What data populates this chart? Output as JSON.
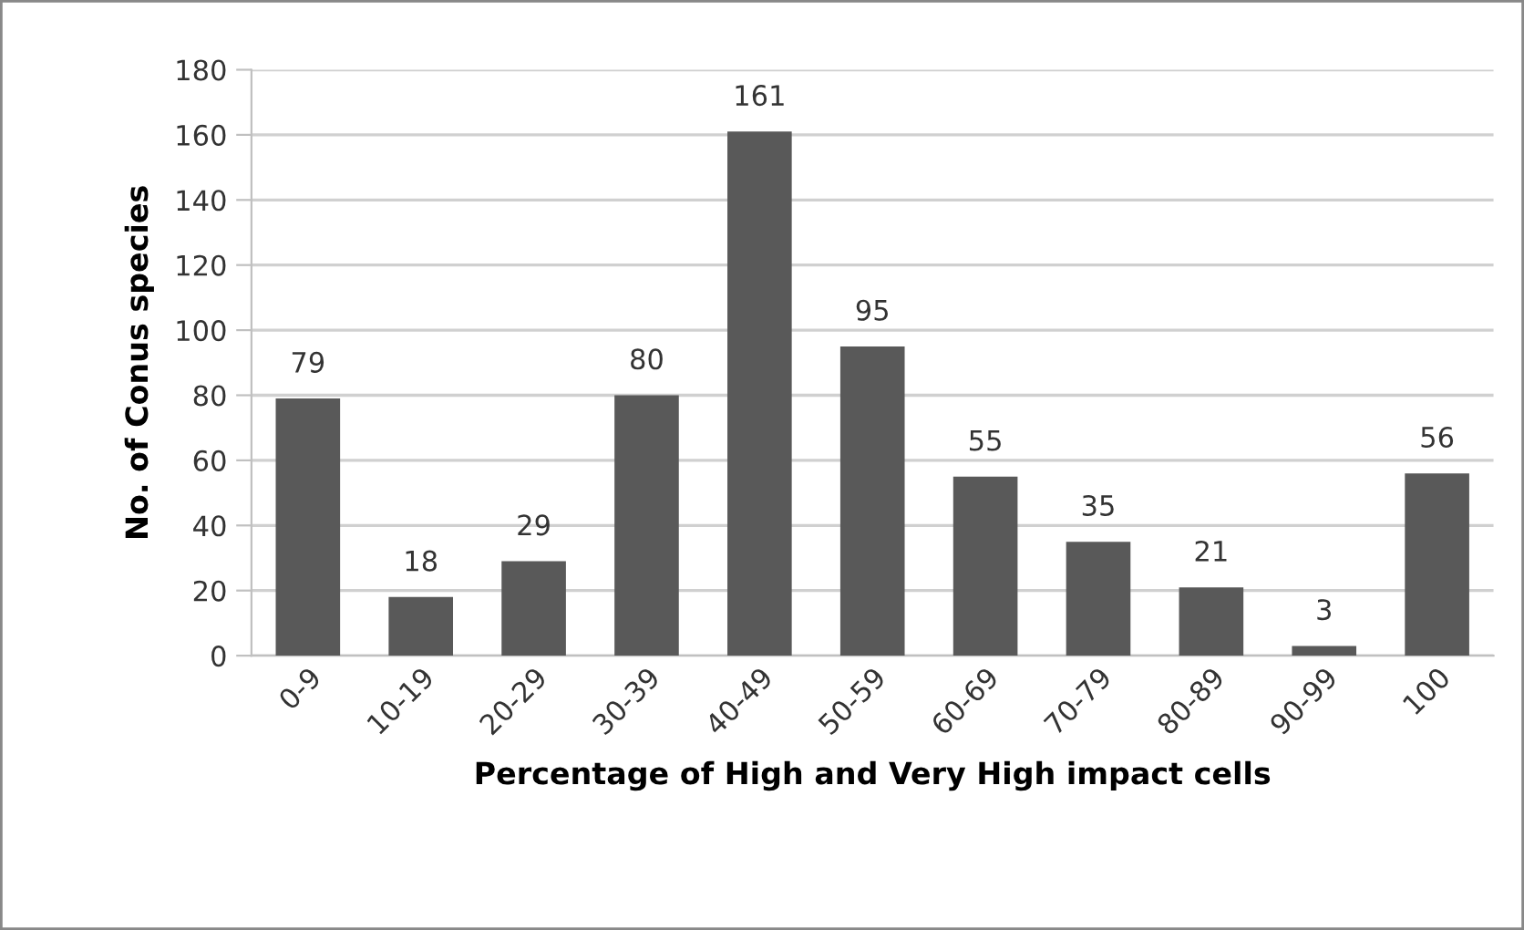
{
  "chart_data": {
    "type": "bar",
    "xlabel": "Percentage of High and Very High impact cells",
    "ylabel": "No. of Conus species",
    "categories": [
      "0-9",
      "10-19",
      "20-29",
      "30-39",
      "40-49",
      "50-59",
      "60-69",
      "70-79",
      "80-89",
      "90-99",
      "100"
    ],
    "values": [
      79,
      18,
      29,
      80,
      161,
      95,
      55,
      35,
      21,
      3,
      56
    ],
    "color": "#595959",
    "ylim": [
      0,
      180
    ],
    "yticks": [
      0,
      20,
      40,
      60,
      80,
      100,
      120,
      140,
      160,
      180
    ],
    "grid": "y",
    "data_labels": true,
    "legend": false
  }
}
